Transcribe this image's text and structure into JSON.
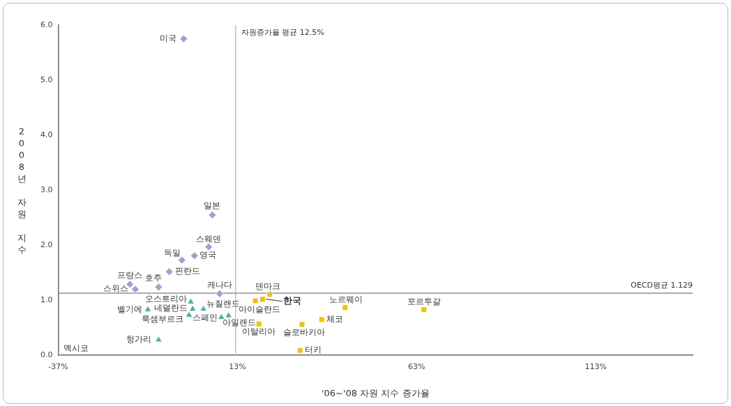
{
  "chart_data": {
    "type": "scatter",
    "xlabel": "'06~'08 자원 지수 증가율",
    "ylabel": "2008년 자원 지수",
    "xlim": [
      -37,
      140
    ],
    "xticks": [
      {
        "value": -37,
        "label": "-37%"
      },
      {
        "value": 13,
        "label": "13%"
      },
      {
        "value": 63,
        "label": "63%"
      },
      {
        "value": 113,
        "label": "113%"
      }
    ],
    "ylim": [
      0,
      6
    ],
    "yticks": [
      {
        "value": 0,
        "label": "0.0"
      },
      {
        "value": 1,
        "label": "1.0"
      },
      {
        "value": 2,
        "label": "2.0"
      },
      {
        "value": 3,
        "label": "3.0"
      },
      {
        "value": 4,
        "label": "4.0"
      },
      {
        "value": 5,
        "label": "5.0"
      },
      {
        "value": 6,
        "label": "6.0"
      }
    ],
    "grid": false,
    "legend": false,
    "series": [
      {
        "color": "#a99bd0",
        "marker": "diamond",
        "x": [
          -2,
          6,
          5,
          1,
          -2.5,
          -6,
          -17,
          -15.5,
          -9,
          8
        ],
        "values": [
          5.75,
          2.55,
          1.97,
          1.81,
          1.73,
          1.52,
          1.29,
          1.2,
          1.24,
          1.12
        ]
      },
      {
        "color": "#3fb0aa",
        "marker": "triangle",
        "x": [
          -37,
          0,
          -12,
          0.5,
          3.5,
          -0.5,
          8.5,
          10.5,
          -9
        ],
        "values": [
          0,
          0.97,
          0.83,
          0.84,
          0.84,
          0.73,
          0.69,
          0.72,
          0.28
        ]
      },
      {
        "color": "#f2c200",
        "marker": "square",
        "x": [
          18,
          20,
          22,
          19,
          31,
          36.5,
          43,
          65,
          30.5
        ],
        "values": [
          0.99,
          1.02,
          1.11,
          0.57,
          0.56,
          0.65,
          0.87,
          0.83,
          0.09
        ]
      }
    ],
    "ref_lines": [
      {
        "axis": "x",
        "value": 12.5,
        "label": "자원증가율 평균 12.5%",
        "color": "#c0c0c0"
      },
      {
        "axis": "y",
        "value": 1.129,
        "label": "OECD평균 1.129",
        "color": "#909090"
      }
    ],
    "annotations": [
      {
        "text": "미국",
        "x": -2,
        "y": 5.75
      },
      {
        "text": "일본",
        "x": 6,
        "y": 2.55
      },
      {
        "text": "스웨덴",
        "x": 5,
        "y": 1.97
      },
      {
        "text": "영국",
        "x": 1,
        "y": 1.81
      },
      {
        "text": "독일",
        "x": -2.5,
        "y": 1.73
      },
      {
        "text": "핀란드",
        "x": -6,
        "y": 1.52
      },
      {
        "text": "프랑스",
        "x": -17,
        "y": 1.29
      },
      {
        "text": "스위스",
        "x": -15.5,
        "y": 1.2
      },
      {
        "text": "호주",
        "x": -9,
        "y": 1.24
      },
      {
        "text": "캐나다",
        "x": 8,
        "y": 1.12
      },
      {
        "text": "멕시코",
        "x": -37,
        "y": 0
      },
      {
        "text": "오스트리아",
        "x": 0,
        "y": 0.97
      },
      {
        "text": "벨기에",
        "x": -12,
        "y": 0.83
      },
      {
        "text": "네덜란드",
        "x": 0.5,
        "y": 0.84
      },
      {
        "text": "뉴질랜드",
        "x": 3.5,
        "y": 0.84
      },
      {
        "text": "룩셈부르크",
        "x": -0.5,
        "y": 0.73
      },
      {
        "text": "스페인",
        "x": 8.5,
        "y": 0.69
      },
      {
        "text": "아일랜드",
        "x": 10.5,
        "y": 0.72
      },
      {
        "text": "헝가리",
        "x": -9,
        "y": 0.28
      },
      {
        "text": "아이슬란드",
        "x": 18,
        "y": 0.99
      },
      {
        "text": "한국",
        "x": 20,
        "y": 1.02
      },
      {
        "text": "덴마크",
        "x": 22,
        "y": 1.11
      },
      {
        "text": "이탈리아",
        "x": 19,
        "y": 0.57
      },
      {
        "text": "슬로바키아",
        "x": 31,
        "y": 0.56
      },
      {
        "text": "체코",
        "x": 36.5,
        "y": 0.65
      },
      {
        "text": "노르웨이",
        "x": 43,
        "y": 0.87
      },
      {
        "text": "포르투갈",
        "x": 65,
        "y": 0.83
      },
      {
        "text": "터키",
        "x": 30.5,
        "y": 0.09
      }
    ]
  }
}
